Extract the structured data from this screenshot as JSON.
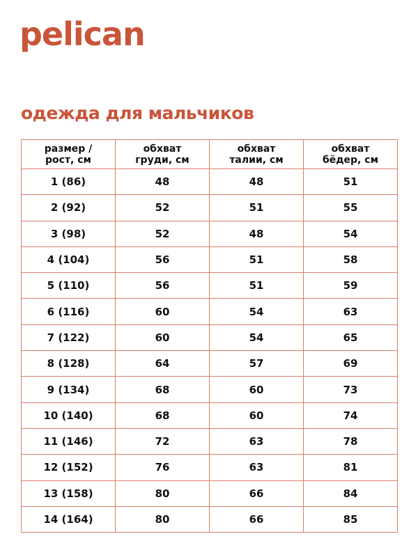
{
  "brand": {
    "logo_text": "pelican",
    "color": "#c9553a"
  },
  "title": "одежда для мальчиков",
  "table": {
    "border_color": "#d9806a",
    "headers": [
      [
        "размер /",
        "рост, см"
      ],
      [
        "обхват",
        "груди, см"
      ],
      [
        "обхват",
        "талии, см"
      ],
      [
        "обхват",
        "бёдер, см"
      ]
    ],
    "rows": [
      [
        "1 (86)",
        "48",
        "48",
        "51"
      ],
      [
        "2 (92)",
        "52",
        "51",
        "55"
      ],
      [
        "3 (98)",
        "52",
        "48",
        "54"
      ],
      [
        "4 (104)",
        "56",
        "51",
        "58"
      ],
      [
        "5 (110)",
        "56",
        "51",
        "59"
      ],
      [
        "6 (116)",
        "60",
        "54",
        "63"
      ],
      [
        "7 (122)",
        "60",
        "54",
        "65"
      ],
      [
        "8 (128)",
        "64",
        "57",
        "69"
      ],
      [
        "9 (134)",
        "68",
        "60",
        "73"
      ],
      [
        "10 (140)",
        "68",
        "60",
        "74"
      ],
      [
        "11 (146)",
        "72",
        "63",
        "78"
      ],
      [
        "12 (152)",
        "76",
        "63",
        "81"
      ],
      [
        "13 (158)",
        "80",
        "66",
        "84"
      ],
      [
        "14 (164)",
        "80",
        "66",
        "85"
      ]
    ]
  }
}
